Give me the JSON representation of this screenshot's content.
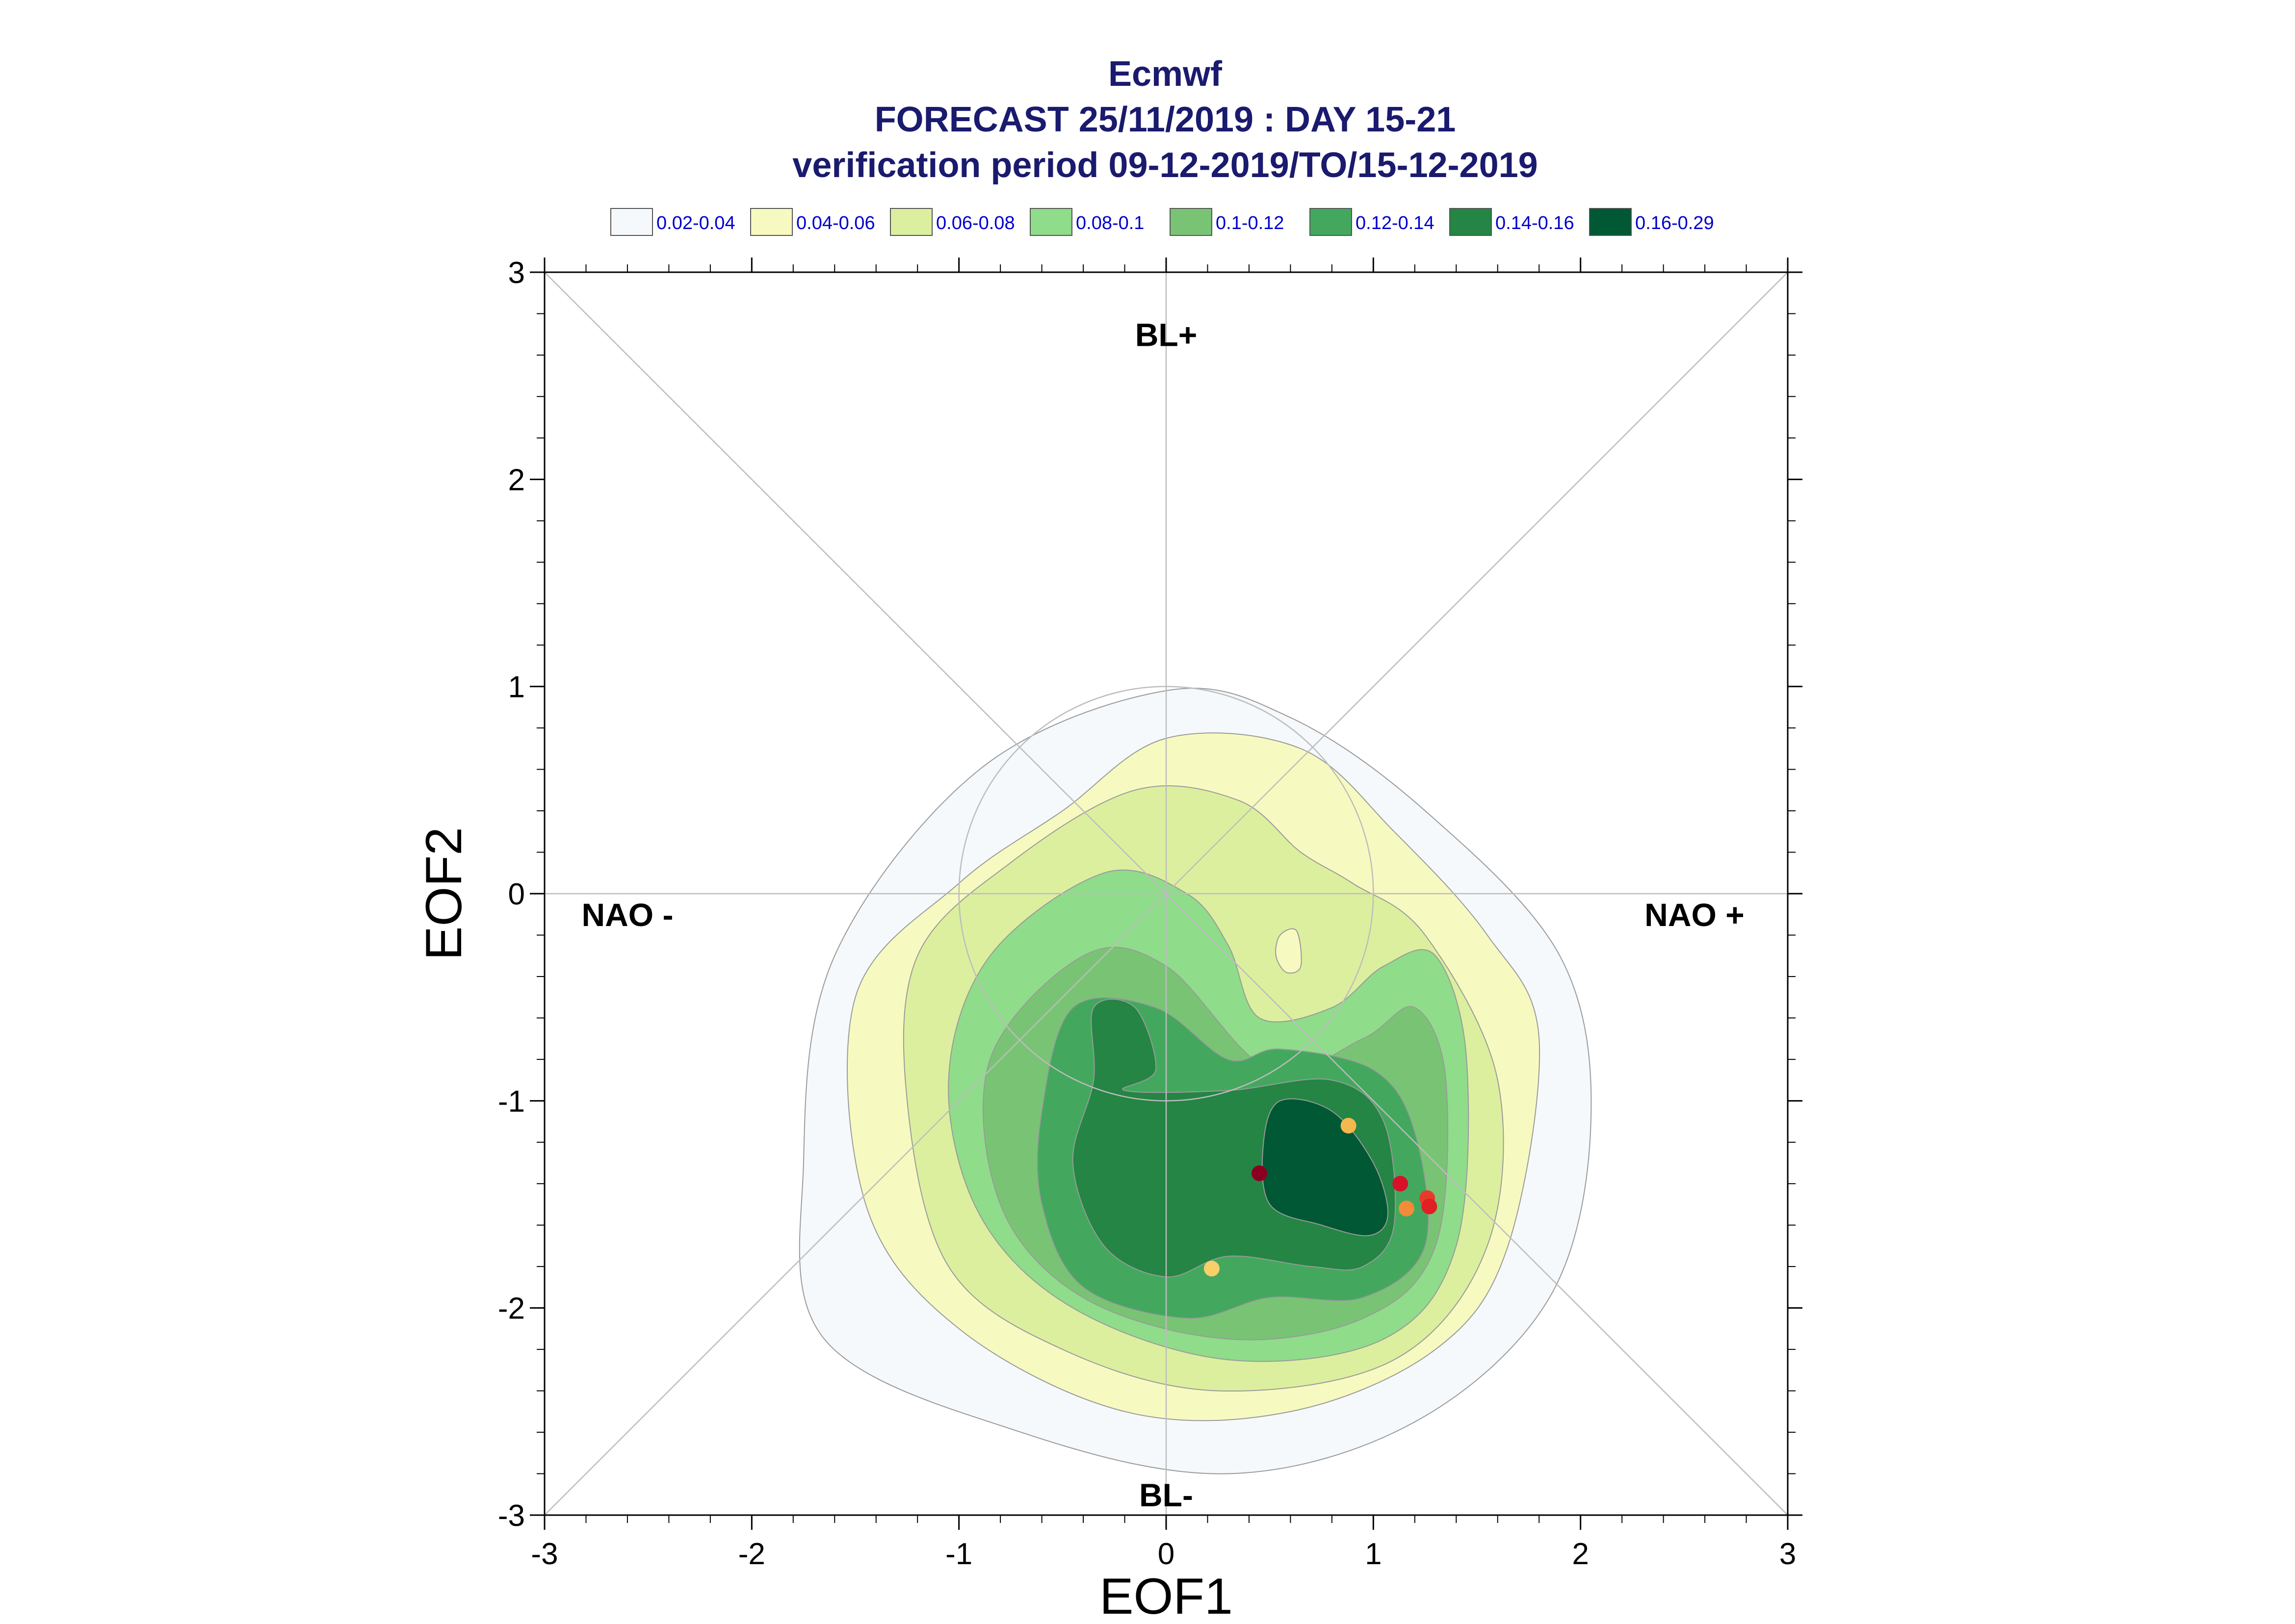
{
  "chart_data": {
    "type": "contour",
    "title_lines": [
      "Ecmwf",
      "FORECAST 25/11/2019 : DAY 15-21",
      "verification period 09-12-2019/TO/15-12-2019"
    ],
    "xlabel": "EOF1",
    "ylabel": "EOF2",
    "xlim": [
      -3,
      3
    ],
    "ylim": [
      -3,
      3
    ],
    "x_ticks": [
      "-3",
      "-2",
      "-1",
      "0",
      "1",
      "2",
      "3"
    ],
    "y_ticks": [
      "-3",
      "-2",
      "-1",
      "0",
      "1",
      "2",
      "3"
    ],
    "regime_labels": [
      {
        "text": "BL+",
        "x": 0,
        "y": 2.7
      },
      {
        "text": "BL-",
        "x": 0,
        "y": -2.9
      },
      {
        "text": "NAO -",
        "x": -2.6,
        "y": -0.1
      },
      {
        "text": "NAO +",
        "x": 2.55,
        "y": -0.1
      }
    ],
    "unit_circle": {
      "cx": 0,
      "cy": 0,
      "r": 1
    },
    "legend": [
      {
        "label": "0.02-0.04",
        "color": "#f5f9fc"
      },
      {
        "label": "0.04-0.06",
        "color": "#f7fac0"
      },
      {
        "label": "0.06-0.08",
        "color": "#dcef9f"
      },
      {
        "label": "0.08-0.1",
        "color": "#8fdc8a"
      },
      {
        "label": "0.1-0.12",
        "color": "#79c474"
      },
      {
        "label": "0.12-0.14",
        "color": "#43a85e"
      },
      {
        "label": "0.14-0.16",
        "color": "#248544"
      },
      {
        "label": "0.16-0.29",
        "color": "#005834"
      }
    ],
    "contours": [
      {
        "level": "0.02-0.04",
        "color": "#f5f9fc",
        "points": [
          [
            0.0,
            0.98
          ],
          [
            0.6,
            0.85
          ],
          [
            1.25,
            0.4
          ],
          [
            1.9,
            -0.3
          ],
          [
            2.05,
            -1.1
          ],
          [
            1.85,
            -1.95
          ],
          [
            1.2,
            -2.55
          ],
          [
            0.3,
            -2.8
          ],
          [
            -0.7,
            -2.6
          ],
          [
            -1.65,
            -2.15
          ],
          [
            -1.75,
            -1.3
          ],
          [
            -1.6,
            -0.3
          ],
          [
            -0.9,
            0.6
          ]
        ]
      },
      {
        "level": "0.04-0.06",
        "color": "#f7fac0",
        "points": [
          [
            0.0,
            0.75
          ],
          [
            0.65,
            0.7
          ],
          [
            1.1,
            0.3
          ],
          [
            1.55,
            -0.2
          ],
          [
            1.8,
            -0.7
          ],
          [
            1.65,
            -1.7
          ],
          [
            1.3,
            -2.2
          ],
          [
            0.6,
            -2.5
          ],
          [
            -0.2,
            -2.5
          ],
          [
            -1.0,
            -2.1
          ],
          [
            -1.45,
            -1.5
          ],
          [
            -1.5,
            -0.5
          ],
          [
            -1.0,
            0.05
          ],
          [
            -0.5,
            0.4
          ]
        ]
      },
      {
        "level": "0.06-0.08",
        "color": "#dcef9f",
        "points": [
          [
            -0.15,
            0.5
          ],
          [
            0.35,
            0.45
          ],
          [
            0.65,
            0.2
          ],
          [
            0.9,
            0.05
          ],
          [
            1.25,
            -0.2
          ],
          [
            1.6,
            -0.9
          ],
          [
            1.55,
            -1.7
          ],
          [
            1.1,
            -2.25
          ],
          [
            0.25,
            -2.4
          ],
          [
            -0.5,
            -2.2
          ],
          [
            -1.05,
            -1.8
          ],
          [
            -1.25,
            -1.0
          ],
          [
            -1.2,
            -0.3
          ],
          [
            -0.75,
            0.15
          ]
        ]
      },
      {
        "level": "0.08-0.1",
        "color": "#8fdc8a",
        "points": [
          [
            -0.3,
            0.1
          ],
          [
            0.1,
            0.0
          ],
          [
            0.3,
            -0.25
          ],
          [
            0.45,
            -0.6
          ],
          [
            0.8,
            -0.55
          ],
          [
            1.05,
            -0.35
          ],
          [
            1.3,
            -0.3
          ],
          [
            1.45,
            -0.8
          ],
          [
            1.4,
            -1.7
          ],
          [
            1.05,
            -2.15
          ],
          [
            0.3,
            -2.25
          ],
          [
            -0.45,
            -2.0
          ],
          [
            -0.9,
            -1.55
          ],
          [
            -1.05,
            -0.9
          ],
          [
            -0.85,
            -0.3
          ]
        ]
      },
      {
        "level": "0.1-0.12",
        "color": "#79c474",
        "points": [
          [
            -0.4,
            -0.3
          ],
          [
            0.0,
            -0.35
          ],
          [
            0.5,
            -0.85
          ],
          [
            0.95,
            -0.7
          ],
          [
            1.2,
            -0.55
          ],
          [
            1.35,
            -0.9
          ],
          [
            1.3,
            -1.7
          ],
          [
            0.95,
            -2.05
          ],
          [
            0.3,
            -2.15
          ],
          [
            -0.4,
            -1.95
          ],
          [
            -0.8,
            -1.5
          ],
          [
            -0.85,
            -0.8
          ]
        ]
      },
      {
        "level": "0.12-0.14",
        "color": "#43a85e",
        "points": [
          [
            -0.45,
            -0.55
          ],
          [
            -0.05,
            -0.55
          ],
          [
            0.3,
            -0.8
          ],
          [
            0.55,
            -0.75
          ],
          [
            1.0,
            -0.85
          ],
          [
            1.2,
            -1.15
          ],
          [
            1.25,
            -1.7
          ],
          [
            0.95,
            -1.95
          ],
          [
            0.5,
            -1.95
          ],
          [
            0.1,
            -2.05
          ],
          [
            -0.4,
            -1.9
          ],
          [
            -0.6,
            -1.5
          ],
          [
            -0.6,
            -1.05
          ]
        ]
      },
      {
        "level": "0.14-0.16",
        "color": "#248544",
        "points": [
          [
            -0.35,
            -0.55
          ],
          [
            -0.15,
            -0.55
          ],
          [
            -0.05,
            -0.85
          ],
          [
            -0.2,
            -0.95
          ],
          [
            0.3,
            -0.95
          ],
          [
            0.8,
            -0.9
          ],
          [
            1.05,
            -1.1
          ],
          [
            1.1,
            -1.6
          ],
          [
            0.95,
            -1.8
          ],
          [
            0.7,
            -1.8
          ],
          [
            0.3,
            -1.75
          ],
          [
            0.0,
            -1.85
          ],
          [
            -0.3,
            -1.7
          ],
          [
            -0.45,
            -1.3
          ],
          [
            -0.35,
            -0.9
          ]
        ]
      },
      {
        "level": "0.16-0.29",
        "color": "#005834",
        "points": [
          [
            0.55,
            -1.0
          ],
          [
            0.8,
            -1.05
          ],
          [
            1.0,
            -1.3
          ],
          [
            1.07,
            -1.55
          ],
          [
            0.98,
            -1.65
          ],
          [
            0.75,
            -1.6
          ],
          [
            0.5,
            -1.5
          ],
          [
            0.47,
            -1.2
          ]
        ]
      }
    ],
    "small_islands": [
      {
        "level": "0.04-0.06",
        "color": "#f7fac0",
        "points": [
          [
            0.55,
            -0.2
          ],
          [
            0.63,
            -0.18
          ],
          [
            0.65,
            -0.35
          ],
          [
            0.58,
            -0.38
          ],
          [
            0.53,
            -0.3
          ]
        ]
      }
    ],
    "points": [
      {
        "x": 0.45,
        "y": -1.35,
        "color": "#8b0020"
      },
      {
        "x": 0.88,
        "y": -1.12,
        "color": "#f5b84c"
      },
      {
        "x": 1.13,
        "y": -1.4,
        "color": "#d8112b"
      },
      {
        "x": 1.16,
        "y": -1.52,
        "color": "#f28c38"
      },
      {
        "x": 1.26,
        "y": -1.47,
        "color": "#e83a2a"
      },
      {
        "x": 1.27,
        "y": -1.51,
        "color": "#e01f25"
      },
      {
        "x": 0.22,
        "y": -1.81,
        "color": "#f9cf6a"
      }
    ]
  }
}
